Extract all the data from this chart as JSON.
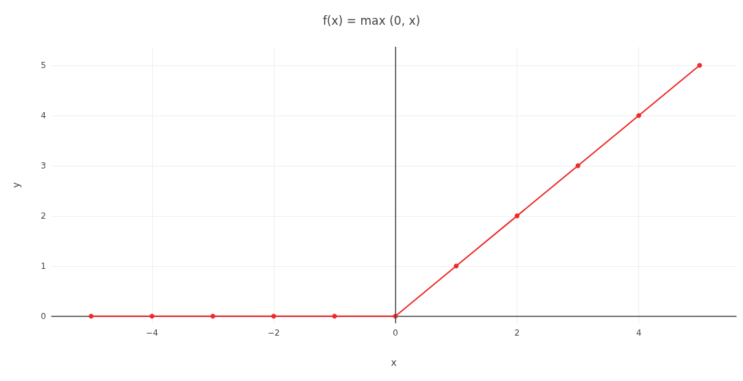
{
  "chart_data": {
    "type": "line",
    "title": "f(x) = max (0, x)",
    "xlabel": "x",
    "ylabel": "y",
    "x": [
      -5,
      -4,
      -3,
      -2,
      -1,
      0,
      1,
      2,
      3,
      4,
      5
    ],
    "series": [
      {
        "color": "#ee2a2a",
        "values": [
          0,
          0,
          0,
          0,
          0,
          0,
          1,
          2,
          3,
          4,
          5
        ]
      }
    ],
    "xlim": [
      -5.65,
      5.6
    ],
    "ylim": [
      -0.14,
      5.37
    ],
    "xticks": [
      {
        "value": -4,
        "label": "−4"
      },
      {
        "value": -2,
        "label": "−2"
      },
      0,
      2,
      4
    ],
    "yticks": [
      0,
      1,
      2,
      3,
      4,
      5
    ],
    "ref_lines": [
      {
        "axis": "x",
        "value": 0,
        "color": "#444444"
      }
    ],
    "grid": true,
    "marker": "circle",
    "line_style": "solid"
  }
}
